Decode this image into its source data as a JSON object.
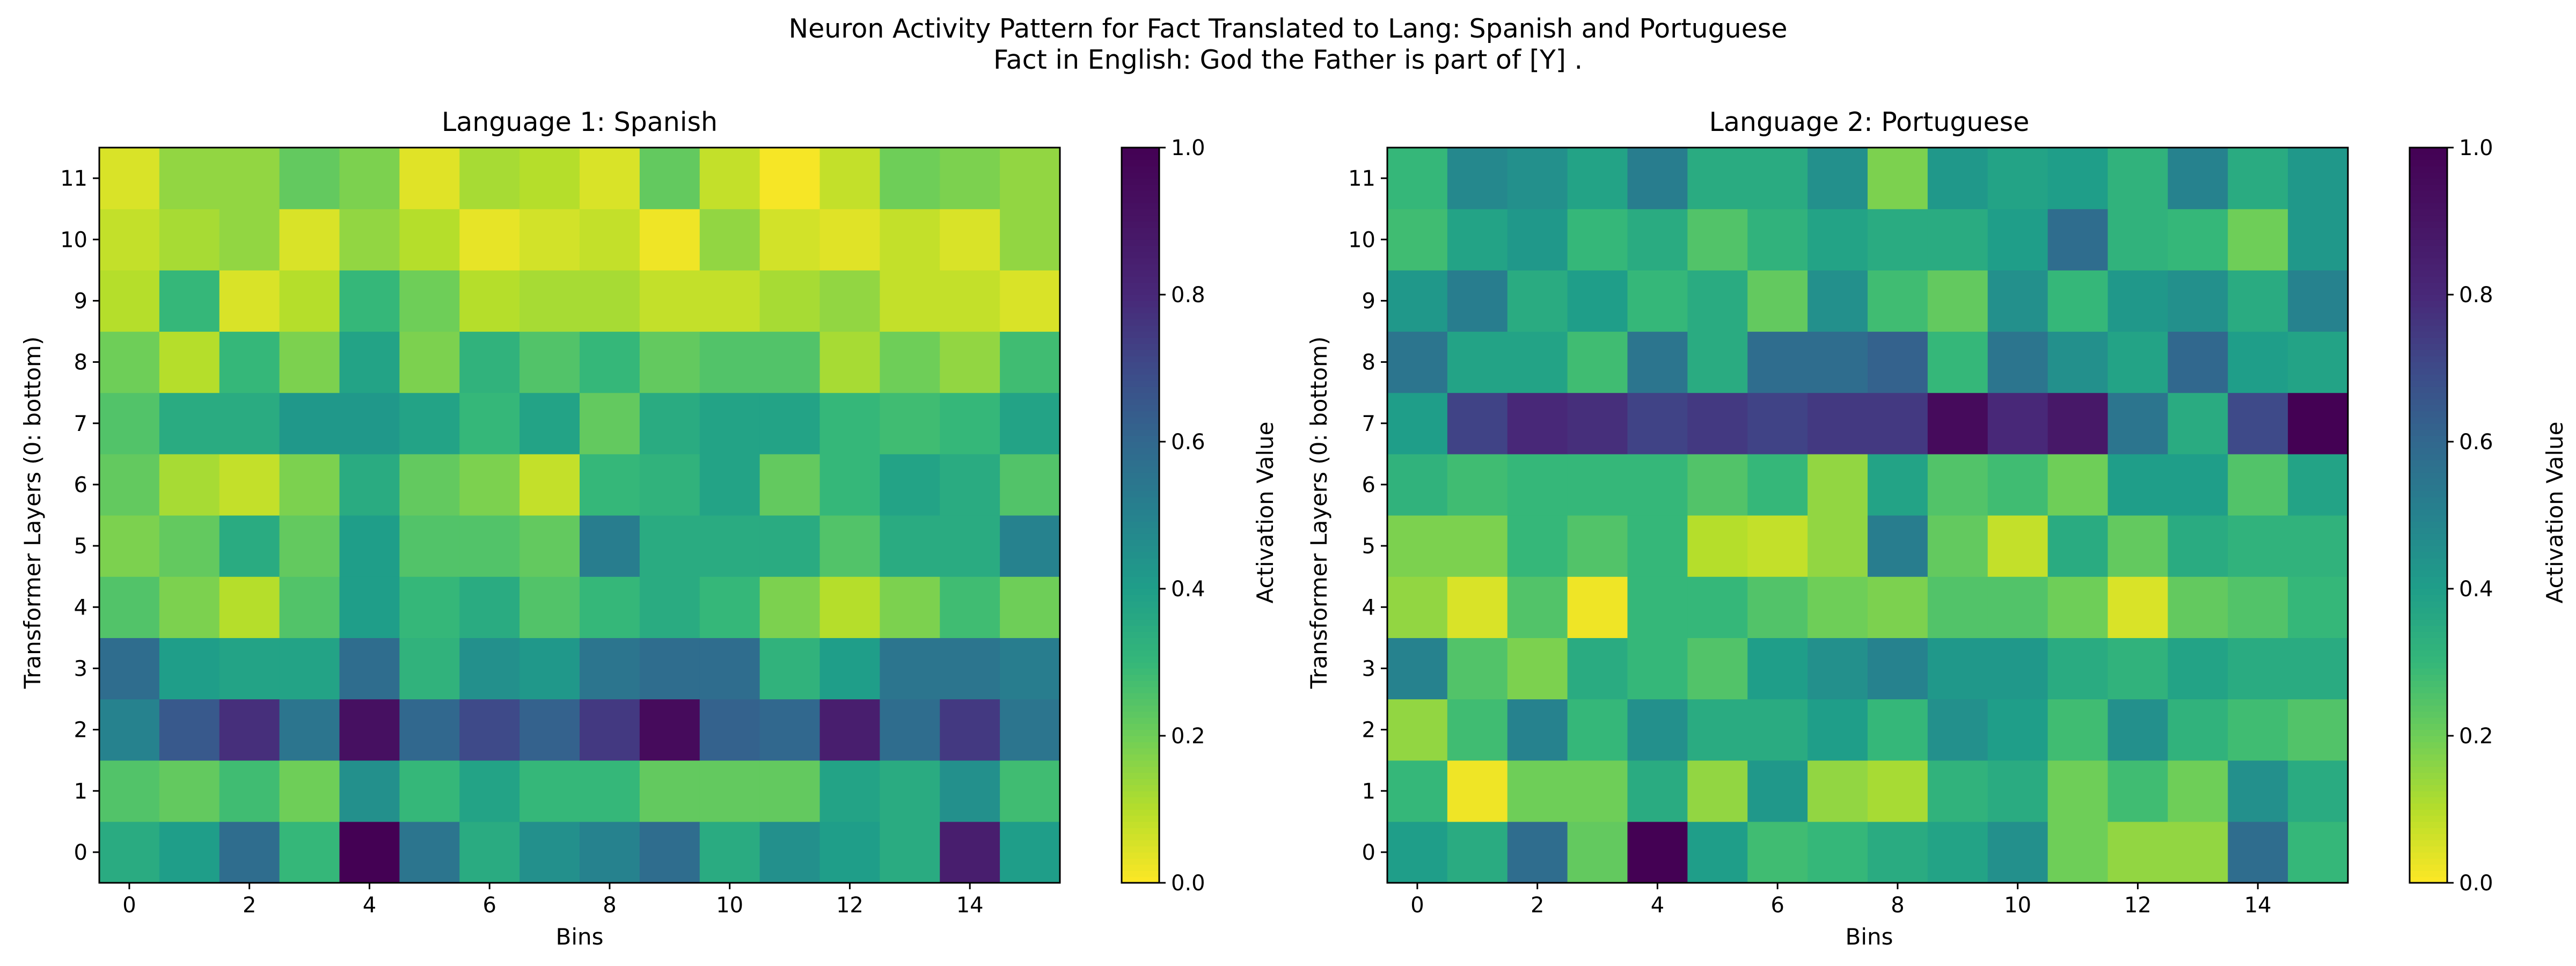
{
  "figure": {
    "title_line1": "Neuron Activity Pattern for Fact Translated to Lang: Spanish and Portuguese",
    "title_line2": "Fact in English: God the Father is part of [Y] ."
  },
  "chart_data": [
    {
      "type": "heatmap",
      "title": "Language 1: Spanish",
      "xlabel": "Bins",
      "ylabel": "Transformer Layers (0: bottom)",
      "x": [
        0,
        1,
        2,
        3,
        4,
        5,
        6,
        7,
        8,
        9,
        10,
        11,
        12,
        13,
        14,
        15
      ],
      "y": [
        0,
        1,
        2,
        3,
        4,
        5,
        6,
        7,
        8,
        9,
        10,
        11
      ],
      "xticks": [
        0,
        2,
        4,
        6,
        8,
        10,
        12,
        14
      ],
      "yticks": [
        0,
        1,
        2,
        3,
        4,
        5,
        6,
        7,
        8,
        9,
        10,
        11
      ],
      "colorbar": {
        "label": "Activation Value",
        "range": [
          0,
          1
        ],
        "ticks": [
          0.0,
          0.2,
          0.4,
          0.6,
          0.8,
          1.0
        ],
        "tick_labels": [
          "0.0",
          "0.2",
          "0.4",
          "0.6",
          "0.8",
          "1.0"
        ],
        "colormap": "viridis_r"
      },
      "values": [
        [
          0.35,
          0.4,
          0.58,
          0.3,
          1.0,
          0.55,
          0.35,
          0.45,
          0.5,
          0.58,
          0.35,
          0.45,
          0.4,
          0.35,
          0.85,
          0.4
        ],
        [
          0.25,
          0.22,
          0.28,
          0.2,
          0.45,
          0.3,
          0.38,
          0.3,
          0.3,
          0.22,
          0.22,
          0.22,
          0.38,
          0.35,
          0.45,
          0.28
        ],
        [
          0.5,
          0.65,
          0.78,
          0.55,
          0.92,
          0.6,
          0.7,
          0.62,
          0.75,
          0.95,
          0.62,
          0.6,
          0.85,
          0.58,
          0.75,
          0.55
        ],
        [
          0.58,
          0.4,
          0.38,
          0.38,
          0.58,
          0.32,
          0.45,
          0.42,
          0.55,
          0.58,
          0.58,
          0.32,
          0.4,
          0.55,
          0.55,
          0.52
        ],
        [
          0.25,
          0.18,
          0.1,
          0.25,
          0.4,
          0.3,
          0.35,
          0.25,
          0.3,
          0.35,
          0.3,
          0.18,
          0.1,
          0.18,
          0.28,
          0.2
        ],
        [
          0.18,
          0.22,
          0.35,
          0.22,
          0.4,
          0.25,
          0.25,
          0.22,
          0.52,
          0.35,
          0.35,
          0.35,
          0.25,
          0.35,
          0.35,
          0.5
        ],
        [
          0.22,
          0.12,
          0.08,
          0.18,
          0.35,
          0.22,
          0.18,
          0.08,
          0.3,
          0.32,
          0.38,
          0.22,
          0.3,
          0.38,
          0.35,
          0.25
        ],
        [
          0.25,
          0.35,
          0.35,
          0.42,
          0.42,
          0.38,
          0.3,
          0.38,
          0.22,
          0.35,
          0.38,
          0.38,
          0.3,
          0.28,
          0.3,
          0.38
        ],
        [
          0.2,
          0.1,
          0.3,
          0.18,
          0.38,
          0.18,
          0.32,
          0.25,
          0.3,
          0.22,
          0.25,
          0.25,
          0.12,
          0.2,
          0.15,
          0.28
        ],
        [
          0.1,
          0.3,
          0.05,
          0.1,
          0.3,
          0.2,
          0.1,
          0.12,
          0.12,
          0.08,
          0.08,
          0.12,
          0.15,
          0.08,
          0.08,
          0.05
        ],
        [
          0.08,
          0.12,
          0.15,
          0.05,
          0.15,
          0.1,
          0.03,
          0.06,
          0.08,
          0.02,
          0.15,
          0.06,
          0.04,
          0.08,
          0.05,
          0.15
        ],
        [
          0.05,
          0.15,
          0.15,
          0.22,
          0.18,
          0.04,
          0.12,
          0.1,
          0.05,
          0.22,
          0.08,
          0.01,
          0.08,
          0.2,
          0.18,
          0.15
        ]
      ]
    },
    {
      "type": "heatmap",
      "title": "Language 2: Portuguese",
      "xlabel": "Bins",
      "ylabel": "Transformer Layers (0: bottom)",
      "x": [
        0,
        1,
        2,
        3,
        4,
        5,
        6,
        7,
        8,
        9,
        10,
        11,
        12,
        13,
        14,
        15
      ],
      "y": [
        0,
        1,
        2,
        3,
        4,
        5,
        6,
        7,
        8,
        9,
        10,
        11
      ],
      "xticks": [
        0,
        2,
        4,
        6,
        8,
        10,
        12,
        14
      ],
      "yticks": [
        0,
        1,
        2,
        3,
        4,
        5,
        6,
        7,
        8,
        9,
        10,
        11
      ],
      "colorbar": {
        "label": "Activation Value",
        "range": [
          0,
          1
        ],
        "ticks": [
          0.0,
          0.2,
          0.4,
          0.6,
          0.8,
          1.0
        ],
        "tick_labels": [
          "0.0",
          "0.2",
          "0.4",
          "0.6",
          "0.8",
          "1.0"
        ],
        "colormap": "viridis_r"
      },
      "values": [
        [
          0.4,
          0.35,
          0.58,
          0.22,
          1.0,
          0.4,
          0.28,
          0.3,
          0.35,
          0.38,
          0.45,
          0.2,
          0.15,
          0.15,
          0.58,
          0.3
        ],
        [
          0.3,
          0.02,
          0.2,
          0.2,
          0.35,
          0.15,
          0.42,
          0.15,
          0.12,
          0.32,
          0.35,
          0.2,
          0.28,
          0.2,
          0.45,
          0.35
        ],
        [
          0.15,
          0.28,
          0.5,
          0.3,
          0.45,
          0.35,
          0.35,
          0.4,
          0.3,
          0.45,
          0.4,
          0.28,
          0.45,
          0.32,
          0.28,
          0.25
        ],
        [
          0.5,
          0.25,
          0.18,
          0.35,
          0.3,
          0.25,
          0.4,
          0.45,
          0.5,
          0.42,
          0.42,
          0.35,
          0.32,
          0.38,
          0.35,
          0.35
        ],
        [
          0.15,
          0.05,
          0.25,
          0.02,
          0.3,
          0.3,
          0.25,
          0.2,
          0.18,
          0.25,
          0.25,
          0.2,
          0.05,
          0.22,
          0.25,
          0.3
        ],
        [
          0.18,
          0.18,
          0.3,
          0.25,
          0.3,
          0.1,
          0.08,
          0.15,
          0.52,
          0.22,
          0.08,
          0.35,
          0.22,
          0.35,
          0.32,
          0.32
        ],
        [
          0.32,
          0.28,
          0.3,
          0.3,
          0.3,
          0.25,
          0.3,
          0.15,
          0.38,
          0.25,
          0.28,
          0.2,
          0.4,
          0.4,
          0.25,
          0.38
        ],
        [
          0.4,
          0.72,
          0.8,
          0.78,
          0.72,
          0.75,
          0.72,
          0.75,
          0.75,
          0.95,
          0.8,
          0.88,
          0.55,
          0.35,
          0.7,
          1.0
        ],
        [
          0.55,
          0.38,
          0.38,
          0.28,
          0.55,
          0.35,
          0.58,
          0.58,
          0.62,
          0.3,
          0.55,
          0.45,
          0.38,
          0.6,
          0.4,
          0.38
        ],
        [
          0.42,
          0.52,
          0.35,
          0.4,
          0.3,
          0.35,
          0.22,
          0.45,
          0.28,
          0.22,
          0.45,
          0.3,
          0.42,
          0.45,
          0.35,
          0.5
        ],
        [
          0.28,
          0.38,
          0.42,
          0.3,
          0.35,
          0.25,
          0.32,
          0.38,
          0.35,
          0.35,
          0.4,
          0.58,
          0.32,
          0.3,
          0.2,
          0.42
        ],
        [
          0.3,
          0.48,
          0.45,
          0.38,
          0.52,
          0.35,
          0.35,
          0.45,
          0.18,
          0.42,
          0.38,
          0.4,
          0.32,
          0.5,
          0.35,
          0.42
        ]
      ]
    }
  ]
}
